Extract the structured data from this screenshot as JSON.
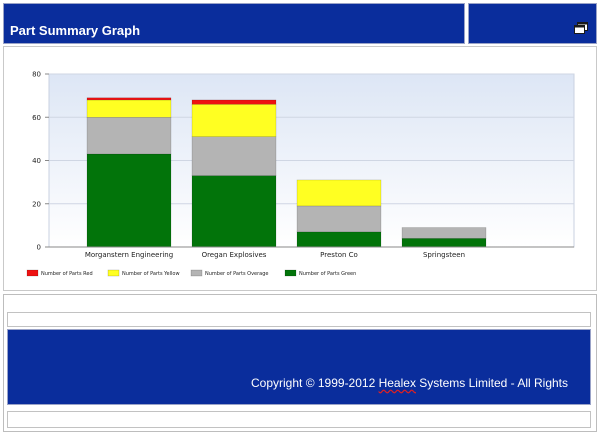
{
  "header": {
    "title": "Part Summary Graph"
  },
  "icons": {
    "window": "restore-window-icon"
  },
  "colors": {
    "header_bg": "#0a2d9c",
    "red": "#ee1111",
    "yellow": "#ffff22",
    "overage": "#b4b4b4",
    "green": "#02740a",
    "plot_top": "#dde6f5",
    "plot_bottom": "#ffffff"
  },
  "chart_data": {
    "type": "bar",
    "stacked": true,
    "categories": [
      "Morganstern Engineering",
      "Oregan Explosives",
      "Preston Co",
      "Springsteen"
    ],
    "series": [
      {
        "name": "Number of Parts Green",
        "color": "#02740a",
        "values": [
          43,
          33,
          7,
          4
        ]
      },
      {
        "name": "Number of Parts Overage",
        "color": "#b4b4b4",
        "values": [
          17,
          18,
          12,
          5
        ]
      },
      {
        "name": "Number of Parts Yellow",
        "color": "#ffff22",
        "values": [
          8,
          15,
          12,
          0
        ]
      },
      {
        "name": "Number of Parts Red",
        "color": "#ee1111",
        "values": [
          1,
          2,
          0,
          0
        ]
      }
    ],
    "legend": [
      {
        "name": "Number of Parts Red",
        "color": "#ee1111"
      },
      {
        "name": "Number of Parts Yellow",
        "color": "#ffff22"
      },
      {
        "name": "Number of Parts Overage",
        "color": "#b4b4b4"
      },
      {
        "name": "Number of Parts Green",
        "color": "#02740a"
      }
    ],
    "yticks": [
      0,
      20,
      40,
      60,
      80
    ],
    "ylim": [
      0,
      80
    ],
    "grid": true,
    "legend_position": "bottom-left",
    "title": "",
    "xlabel": "",
    "ylabel": ""
  },
  "footer": {
    "copyright_prefix": "Copyright © 1999-2012 ",
    "copyright_brand": "Healex",
    "copyright_suffix": " Systems Limited - All Rights"
  }
}
